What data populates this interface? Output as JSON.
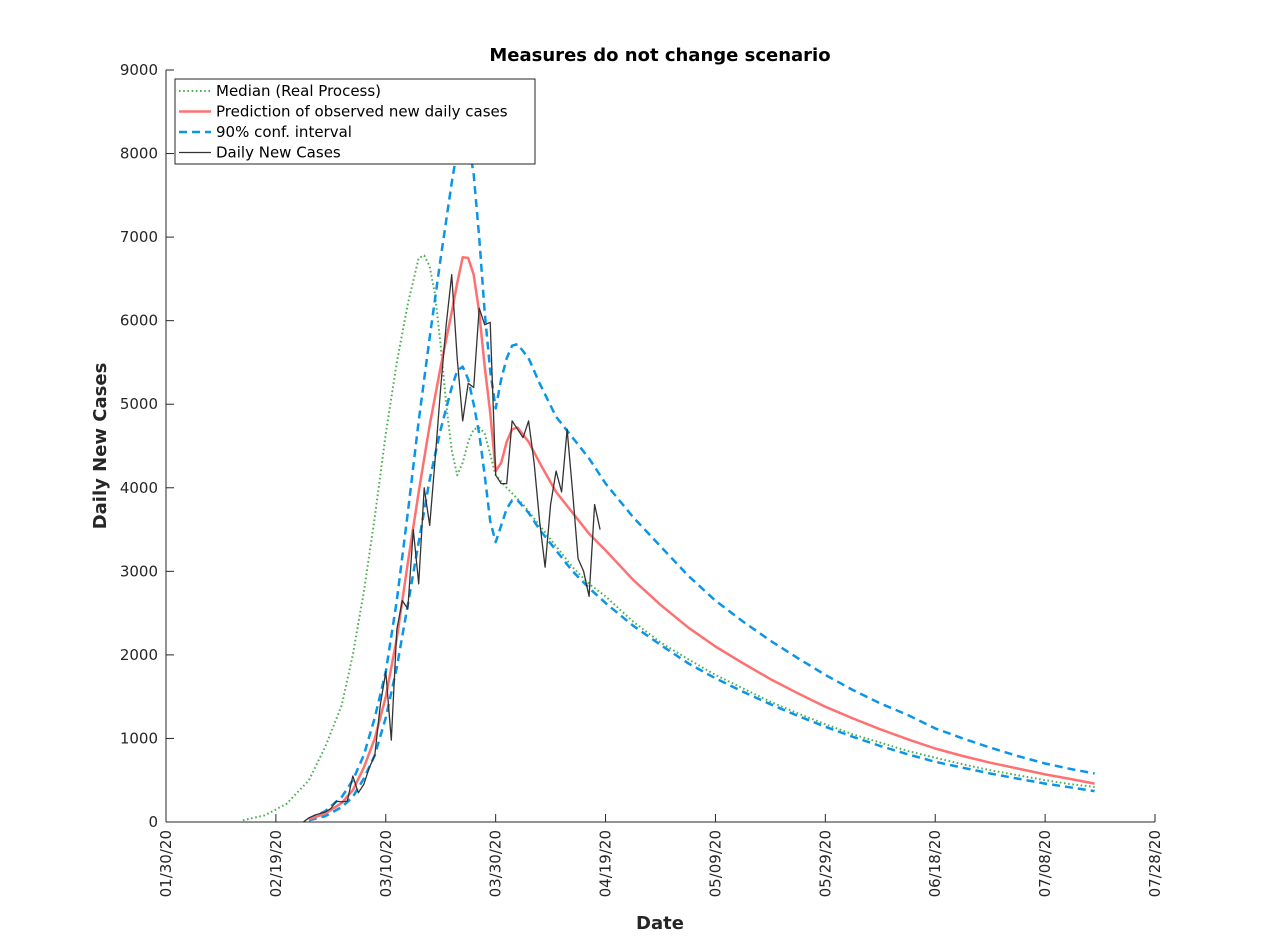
{
  "chart_data": {
    "type": "line",
    "title": "Measures do not change scenario",
    "xlabel": "Date",
    "ylabel": "Daily New Cases",
    "x_axis": {
      "type": "date",
      "range": [
        "2020-01-30",
        "2020-07-28"
      ],
      "tick_dates": [
        "2020-01-30",
        "2020-02-19",
        "2020-03-10",
        "2020-03-30",
        "2020-04-19",
        "2020-05-09",
        "2020-05-29",
        "2020-06-18",
        "2020-07-08",
        "2020-07-28"
      ],
      "tick_labels": [
        "01/30/20",
        "02/19/20",
        "03/10/20",
        "03/30/20",
        "04/19/20",
        "05/09/20",
        "05/29/20",
        "06/18/20",
        "07/08/20",
        "07/28/20"
      ]
    },
    "y_axis": {
      "range": [
        0,
        9000
      ],
      "ticks": [
        0,
        1000,
        2000,
        3000,
        4000,
        5000,
        6000,
        7000,
        8000,
        9000
      ],
      "tick_labels": [
        "0",
        "1000",
        "2000",
        "3000",
        "4000",
        "5000",
        "6000",
        "7000",
        "8000",
        "9000"
      ]
    },
    "grid": false,
    "legend_position": "top-left",
    "legend": [
      {
        "label": "Median (Real Process)",
        "style": "dotted",
        "color": "#4caf50"
      },
      {
        "label": "Prediction of observed new daily cases",
        "style": "solid",
        "color": "#ff7070"
      },
      {
        "label": "90% conf. interval",
        "style": "dashed",
        "color": "#0a95e8"
      },
      {
        "label": "Daily New Cases",
        "style": "solid",
        "color": "#333333"
      }
    ],
    "series": [
      {
        "name": "Median (Real Process)",
        "color": "#4caf50",
        "style": "dotted",
        "points": [
          [
            "2020-02-13",
            20
          ],
          [
            "2020-02-17",
            80
          ],
          [
            "2020-02-21",
            220
          ],
          [
            "2020-02-25",
            500
          ],
          [
            "2020-02-28",
            900
          ],
          [
            "2020-03-02",
            1400
          ],
          [
            "2020-03-04",
            2000
          ],
          [
            "2020-03-06",
            2750
          ],
          [
            "2020-03-08",
            3650
          ],
          [
            "2020-03-10",
            4650
          ],
          [
            "2020-03-12",
            5500
          ],
          [
            "2020-03-14",
            6200
          ],
          [
            "2020-03-16",
            6750
          ],
          [
            "2020-03-17",
            6780
          ],
          [
            "2020-03-18",
            6650
          ],
          [
            "2020-03-19",
            6300
          ],
          [
            "2020-03-20",
            5700
          ],
          [
            "2020-03-21",
            5000
          ],
          [
            "2020-03-22",
            4450
          ],
          [
            "2020-03-23",
            4150
          ],
          [
            "2020-03-24",
            4300
          ],
          [
            "2020-03-25",
            4550
          ],
          [
            "2020-03-26",
            4700
          ],
          [
            "2020-03-27",
            4720
          ],
          [
            "2020-03-28",
            4650
          ],
          [
            "2020-03-29",
            4400
          ],
          [
            "2020-03-30",
            4150
          ],
          [
            "2020-04-01",
            4000
          ],
          [
            "2020-04-04",
            3800
          ],
          [
            "2020-04-07",
            3550
          ],
          [
            "2020-04-10",
            3300
          ],
          [
            "2020-04-13",
            3050
          ],
          [
            "2020-04-16",
            2850
          ],
          [
            "2020-04-19",
            2700
          ],
          [
            "2020-04-24",
            2400
          ],
          [
            "2020-04-29",
            2150
          ],
          [
            "2020-05-04",
            1950
          ],
          [
            "2020-05-09",
            1760
          ],
          [
            "2020-05-14",
            1600
          ],
          [
            "2020-05-19",
            1440
          ],
          [
            "2020-05-24",
            1300
          ],
          [
            "2020-05-29",
            1170
          ],
          [
            "2020-06-03",
            1050
          ],
          [
            "2020-06-08",
            950
          ],
          [
            "2020-06-13",
            850
          ],
          [
            "2020-06-18",
            770
          ],
          [
            "2020-06-23",
            690
          ],
          [
            "2020-06-28",
            620
          ],
          [
            "2020-07-03",
            560
          ],
          [
            "2020-07-08",
            500
          ],
          [
            "2020-07-13",
            450
          ],
          [
            "2020-07-17",
            420
          ]
        ]
      },
      {
        "name": "Prediction of observed new daily cases",
        "color": "#ff7070",
        "style": "solid",
        "points": [
          [
            "2020-02-25",
            30
          ],
          [
            "2020-02-28",
            100
          ],
          [
            "2020-03-02",
            230
          ],
          [
            "2020-03-04",
            380
          ],
          [
            "2020-03-06",
            650
          ],
          [
            "2020-03-08",
            1000
          ],
          [
            "2020-03-10",
            1500
          ],
          [
            "2020-03-12",
            2200
          ],
          [
            "2020-03-14",
            3100
          ],
          [
            "2020-03-16",
            3950
          ],
          [
            "2020-03-18",
            4750
          ],
          [
            "2020-03-20",
            5450
          ],
          [
            "2020-03-22",
            6100
          ],
          [
            "2020-03-23",
            6450
          ],
          [
            "2020-03-24",
            6760
          ],
          [
            "2020-03-25",
            6750
          ],
          [
            "2020-03-26",
            6550
          ],
          [
            "2020-03-27",
            6100
          ],
          [
            "2020-03-28",
            5450
          ],
          [
            "2020-03-29",
            4900
          ],
          [
            "2020-03-30",
            4200
          ],
          [
            "2020-03-31",
            4300
          ],
          [
            "2020-04-01",
            4550
          ],
          [
            "2020-04-02",
            4700
          ],
          [
            "2020-04-03",
            4720
          ],
          [
            "2020-04-05",
            4550
          ],
          [
            "2020-04-07",
            4300
          ],
          [
            "2020-04-10",
            3950
          ],
          [
            "2020-04-13",
            3700
          ],
          [
            "2020-04-16",
            3450
          ],
          [
            "2020-04-19",
            3250
          ],
          [
            "2020-04-24",
            2900
          ],
          [
            "2020-04-29",
            2600
          ],
          [
            "2020-05-04",
            2330
          ],
          [
            "2020-05-09",
            2100
          ],
          [
            "2020-05-14",
            1900
          ],
          [
            "2020-05-19",
            1710
          ],
          [
            "2020-05-24",
            1540
          ],
          [
            "2020-05-29",
            1380
          ],
          [
            "2020-06-03",
            1240
          ],
          [
            "2020-06-08",
            1110
          ],
          [
            "2020-06-13",
            990
          ],
          [
            "2020-06-18",
            880
          ],
          [
            "2020-06-23",
            790
          ],
          [
            "2020-06-28",
            710
          ],
          [
            "2020-07-03",
            640
          ],
          [
            "2020-07-08",
            570
          ],
          [
            "2020-07-13",
            510
          ],
          [
            "2020-07-17",
            460
          ]
        ]
      },
      {
        "name": "90% conf. interval",
        "color": "#0a95e8",
        "style": "dashed",
        "points": [
          [
            "2020-02-25",
            40
          ],
          [
            "2020-02-28",
            130
          ],
          [
            "2020-03-02",
            300
          ],
          [
            "2020-03-04",
            500
          ],
          [
            "2020-03-06",
            800
          ],
          [
            "2020-03-08",
            1250
          ],
          [
            "2020-03-10",
            1800
          ],
          [
            "2020-03-12",
            2650
          ],
          [
            "2020-03-14",
            3700
          ],
          [
            "2020-03-16",
            4800
          ],
          [
            "2020-03-18",
            5800
          ],
          [
            "2020-03-20",
            6750
          ],
          [
            "2020-03-22",
            7650
          ],
          [
            "2020-03-23",
            8050
          ],
          [
            "2020-03-24",
            8200
          ],
          [
            "2020-03-25",
            8150
          ],
          [
            "2020-03-26",
            7750
          ],
          [
            "2020-03-27",
            7000
          ],
          [
            "2020-03-28",
            6100
          ],
          [
            "2020-03-29",
            5400
          ],
          [
            "2020-03-30",
            4950
          ],
          [
            "2020-03-31",
            5300
          ],
          [
            "2020-04-01",
            5550
          ],
          [
            "2020-04-02",
            5700
          ],
          [
            "2020-04-03",
            5720
          ],
          [
            "2020-04-05",
            5550
          ],
          [
            "2020-04-07",
            5250
          ],
          [
            "2020-04-10",
            4850
          ],
          [
            "2020-04-13",
            4600
          ],
          [
            "2020-04-16",
            4350
          ],
          [
            "2020-04-19",
            4050
          ],
          [
            "2020-04-24",
            3650
          ],
          [
            "2020-04-29",
            3300
          ],
          [
            "2020-05-04",
            2950
          ],
          [
            "2020-05-09",
            2650
          ],
          [
            "2020-05-14",
            2400
          ],
          [
            "2020-05-19",
            2170
          ],
          [
            "2020-05-24",
            1960
          ],
          [
            "2020-05-29",
            1760
          ],
          [
            "2020-06-03",
            1580
          ],
          [
            "2020-06-08",
            1420
          ],
          [
            "2020-06-13",
            1280
          ],
          [
            "2020-06-18",
            1120
          ],
          [
            "2020-06-23",
            1000
          ],
          [
            "2020-06-28",
            890
          ],
          [
            "2020-07-03",
            790
          ],
          [
            "2020-07-08",
            700
          ],
          [
            "2020-07-13",
            630
          ],
          [
            "2020-07-17",
            580
          ]
        ]
      },
      {
        "name": "90% conf. interval",
        "color": "#0a95e8",
        "style": "dashed",
        "points": [
          [
            "2020-02-25",
            20
          ],
          [
            "2020-02-28",
            70
          ],
          [
            "2020-03-02",
            180
          ],
          [
            "2020-03-04",
            300
          ],
          [
            "2020-03-06",
            520
          ],
          [
            "2020-03-08",
            800
          ],
          [
            "2020-03-10",
            1250
          ],
          [
            "2020-03-12",
            1850
          ],
          [
            "2020-03-14",
            2600
          ],
          [
            "2020-03-16",
            3350
          ],
          [
            "2020-03-18",
            4100
          ],
          [
            "2020-03-20",
            4700
          ],
          [
            "2020-03-22",
            5200
          ],
          [
            "2020-03-23",
            5400
          ],
          [
            "2020-03-24",
            5450
          ],
          [
            "2020-03-25",
            5300
          ],
          [
            "2020-03-26",
            5000
          ],
          [
            "2020-03-27",
            4650
          ],
          [
            "2020-03-28",
            4150
          ],
          [
            "2020-03-29",
            3600
          ],
          [
            "2020-03-30",
            3350
          ],
          [
            "2020-03-31",
            3550
          ],
          [
            "2020-04-01",
            3750
          ],
          [
            "2020-04-02",
            3850
          ],
          [
            "2020-04-03",
            3850
          ],
          [
            "2020-04-05",
            3700
          ],
          [
            "2020-04-07",
            3500
          ],
          [
            "2020-04-10",
            3250
          ],
          [
            "2020-04-13",
            3000
          ],
          [
            "2020-04-16",
            2800
          ],
          [
            "2020-04-19",
            2620
          ],
          [
            "2020-04-24",
            2350
          ],
          [
            "2020-04-29",
            2120
          ],
          [
            "2020-05-04",
            1900
          ],
          [
            "2020-05-09",
            1720
          ],
          [
            "2020-05-14",
            1560
          ],
          [
            "2020-05-19",
            1410
          ],
          [
            "2020-05-24",
            1270
          ],
          [
            "2020-05-29",
            1140
          ],
          [
            "2020-06-03",
            1020
          ],
          [
            "2020-06-08",
            910
          ],
          [
            "2020-06-13",
            810
          ],
          [
            "2020-06-18",
            720
          ],
          [
            "2020-06-23",
            650
          ],
          [
            "2020-06-28",
            580
          ],
          [
            "2020-07-03",
            520
          ],
          [
            "2020-07-08",
            460
          ],
          [
            "2020-07-13",
            410
          ],
          [
            "2020-07-17",
            370
          ]
        ]
      },
      {
        "name": "Daily New Cases",
        "color": "#333333",
        "style": "solid",
        "points": [
          [
            "2020-02-24",
            0
          ],
          [
            "2020-02-25",
            50
          ],
          [
            "2020-02-26",
            80
          ],
          [
            "2020-02-27",
            100
          ],
          [
            "2020-02-28",
            120
          ],
          [
            "2020-02-29",
            160
          ],
          [
            "2020-03-01",
            250
          ],
          [
            "2020-03-02",
            240
          ],
          [
            "2020-03-03",
            250
          ],
          [
            "2020-03-04",
            550
          ],
          [
            "2020-03-05",
            350
          ],
          [
            "2020-03-06",
            450
          ],
          [
            "2020-03-07",
            650
          ],
          [
            "2020-03-08",
            800
          ],
          [
            "2020-03-09",
            1400
          ],
          [
            "2020-03-10",
            1800
          ],
          [
            "2020-03-11",
            980
          ],
          [
            "2020-03-12",
            2300
          ],
          [
            "2020-03-13",
            2650
          ],
          [
            "2020-03-14",
            2550
          ],
          [
            "2020-03-15",
            3500
          ],
          [
            "2020-03-16",
            2850
          ],
          [
            "2020-03-17",
            4000
          ],
          [
            "2020-03-18",
            3550
          ],
          [
            "2020-03-19",
            4350
          ],
          [
            "2020-03-20",
            5200
          ],
          [
            "2020-03-21",
            5950
          ],
          [
            "2020-03-22",
            6550
          ],
          [
            "2020-03-23",
            5550
          ],
          [
            "2020-03-24",
            4800
          ],
          [
            "2020-03-25",
            5250
          ],
          [
            "2020-03-26",
            5200
          ],
          [
            "2020-03-27",
            6150
          ],
          [
            "2020-03-28",
            5950
          ],
          [
            "2020-03-29",
            5980
          ],
          [
            "2020-03-30",
            4150
          ],
          [
            "2020-03-31",
            4050
          ],
          [
            "2020-04-01",
            4050
          ],
          [
            "2020-04-02",
            4800
          ],
          [
            "2020-04-03",
            4700
          ],
          [
            "2020-04-04",
            4600
          ],
          [
            "2020-04-05",
            4800
          ],
          [
            "2020-04-06",
            4300
          ],
          [
            "2020-04-07",
            3600
          ],
          [
            "2020-04-08",
            3050
          ],
          [
            "2020-04-09",
            3800
          ],
          [
            "2020-04-10",
            4200
          ],
          [
            "2020-04-11",
            3950
          ],
          [
            "2020-04-12",
            4700
          ],
          [
            "2020-04-13",
            3950
          ],
          [
            "2020-04-14",
            3150
          ],
          [
            "2020-04-15",
            3000
          ],
          [
            "2020-04-16",
            2700
          ],
          [
            "2020-04-17",
            3800
          ],
          [
            "2020-04-18",
            3500
          ]
        ]
      }
    ]
  }
}
